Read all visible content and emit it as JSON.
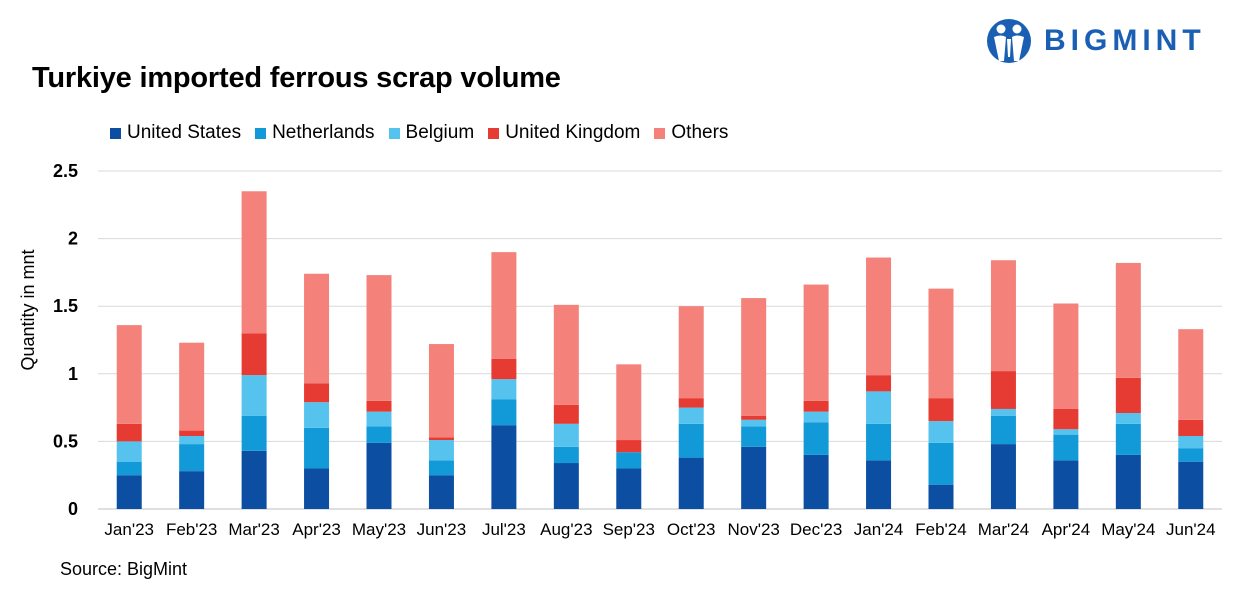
{
  "brand": {
    "name": "BIGMINT",
    "logo_icon": "bigmint-people-icon"
  },
  "source": "Source: BigMint",
  "colors": {
    "United States": "#0b4ea2",
    "Netherlands": "#129ad8",
    "Belgium": "#56c3ef",
    "United Kingdom": "#e63b33",
    "Others": "#f4827a",
    "grid": "#d9d9d9"
  },
  "chart_data": {
    "type": "bar",
    "stacked": true,
    "title": "Turkiye imported ferrous scrap volume",
    "xlabel": "",
    "ylabel": "Quantity in mnt",
    "ylim": [
      0,
      2.5
    ],
    "yticks": [
      0,
      0.5,
      1,
      1.5,
      2,
      2.5
    ],
    "ytick_labels": [
      "0",
      "0.5",
      "1",
      "1.5",
      "2",
      "2.5"
    ],
    "grid": true,
    "legend_position": "top-left",
    "categories": [
      "Jan'23",
      "Feb'23",
      "Mar'23",
      "Apr'23",
      "May'23",
      "Jun'23",
      "Jul'23",
      "Aug'23",
      "Sep'23",
      "Oct'23",
      "Nov'23",
      "Dec'23",
      "Jan'24",
      "Feb'24",
      "Mar'24",
      "Apr'24",
      "May'24",
      "Jun'24"
    ],
    "series": [
      {
        "name": "United States",
        "values": [
          0.25,
          0.28,
          0.43,
          0.3,
          0.49,
          0.25,
          0.62,
          0.34,
          0.3,
          0.38,
          0.46,
          0.4,
          0.36,
          0.18,
          0.48,
          0.36,
          0.4,
          0.35
        ]
      },
      {
        "name": "Netherlands",
        "values": [
          0.1,
          0.2,
          0.26,
          0.3,
          0.12,
          0.11,
          0.19,
          0.12,
          0.12,
          0.25,
          0.15,
          0.24,
          0.27,
          0.31,
          0.21,
          0.19,
          0.23,
          0.1
        ]
      },
      {
        "name": "Belgium",
        "values": [
          0.15,
          0.06,
          0.3,
          0.19,
          0.11,
          0.15,
          0.15,
          0.17,
          0.0,
          0.12,
          0.05,
          0.08,
          0.24,
          0.16,
          0.05,
          0.04,
          0.08,
          0.09
        ]
      },
      {
        "name": "United Kingdom",
        "values": [
          0.13,
          0.04,
          0.31,
          0.14,
          0.08,
          0.02,
          0.15,
          0.14,
          0.09,
          0.07,
          0.03,
          0.08,
          0.12,
          0.17,
          0.28,
          0.15,
          0.26,
          0.12
        ]
      },
      {
        "name": "Others",
        "values": [
          0.73,
          0.65,
          1.05,
          0.81,
          0.93,
          0.69,
          0.79,
          0.74,
          0.56,
          0.68,
          0.87,
          0.86,
          0.87,
          0.81,
          0.82,
          0.78,
          0.85,
          0.67
        ]
      }
    ]
  }
}
